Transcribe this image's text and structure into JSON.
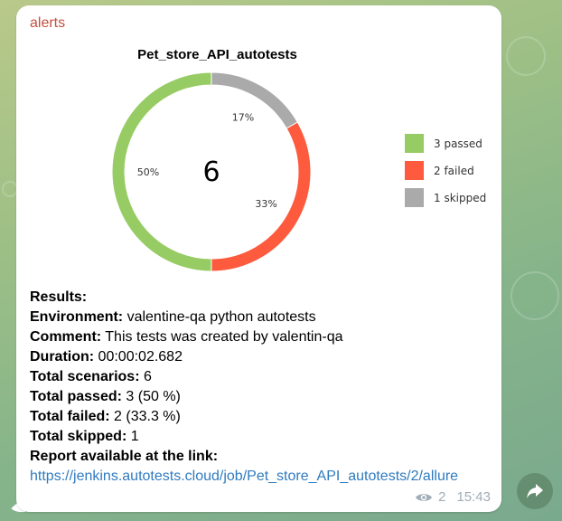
{
  "message": {
    "sender": "alerts",
    "views": "2",
    "time": "15:43"
  },
  "chart_data": {
    "type": "pie",
    "title": "Pet_store_API_autotests",
    "center_label": "6",
    "slices": [
      {
        "label": "3 passed",
        "value": 3,
        "percent_label": "50%",
        "color": "#97cc64"
      },
      {
        "label": "2 failed",
        "value": 2,
        "percent_label": "33%",
        "color": "#fd5a3e"
      },
      {
        "label": "1 skipped",
        "value": 1,
        "percent_label": "17%",
        "color": "#aaaaaa"
      }
    ],
    "legend_position": "right"
  },
  "results": {
    "heading": "Results:",
    "environment_label": "Environment:",
    "environment_value": " valentine-qa python autotests",
    "comment_label": "Comment:",
    "comment_value": " This tests was created by valentin-qa",
    "duration_label": "Duration:",
    "duration_value": " 00:00:02.682",
    "total_scenarios_label": "Total scenarios:",
    "total_scenarios_value": " 6",
    "total_passed_label": "Total passed:",
    "total_passed_value": " 3 (50 %)",
    "total_failed_label": "Total failed:",
    "total_failed_value": " 2 (33.3 %)",
    "total_skipped_label": "Total skipped:",
    "total_skipped_value": " 1",
    "report_label": "Report available at the link:",
    "report_link": "https://jenkins.autotests.cloud/job/Pet_store_API_autotests/2/allure"
  },
  "icons": {
    "views": "eye-icon",
    "share": "share-arrow-icon"
  }
}
